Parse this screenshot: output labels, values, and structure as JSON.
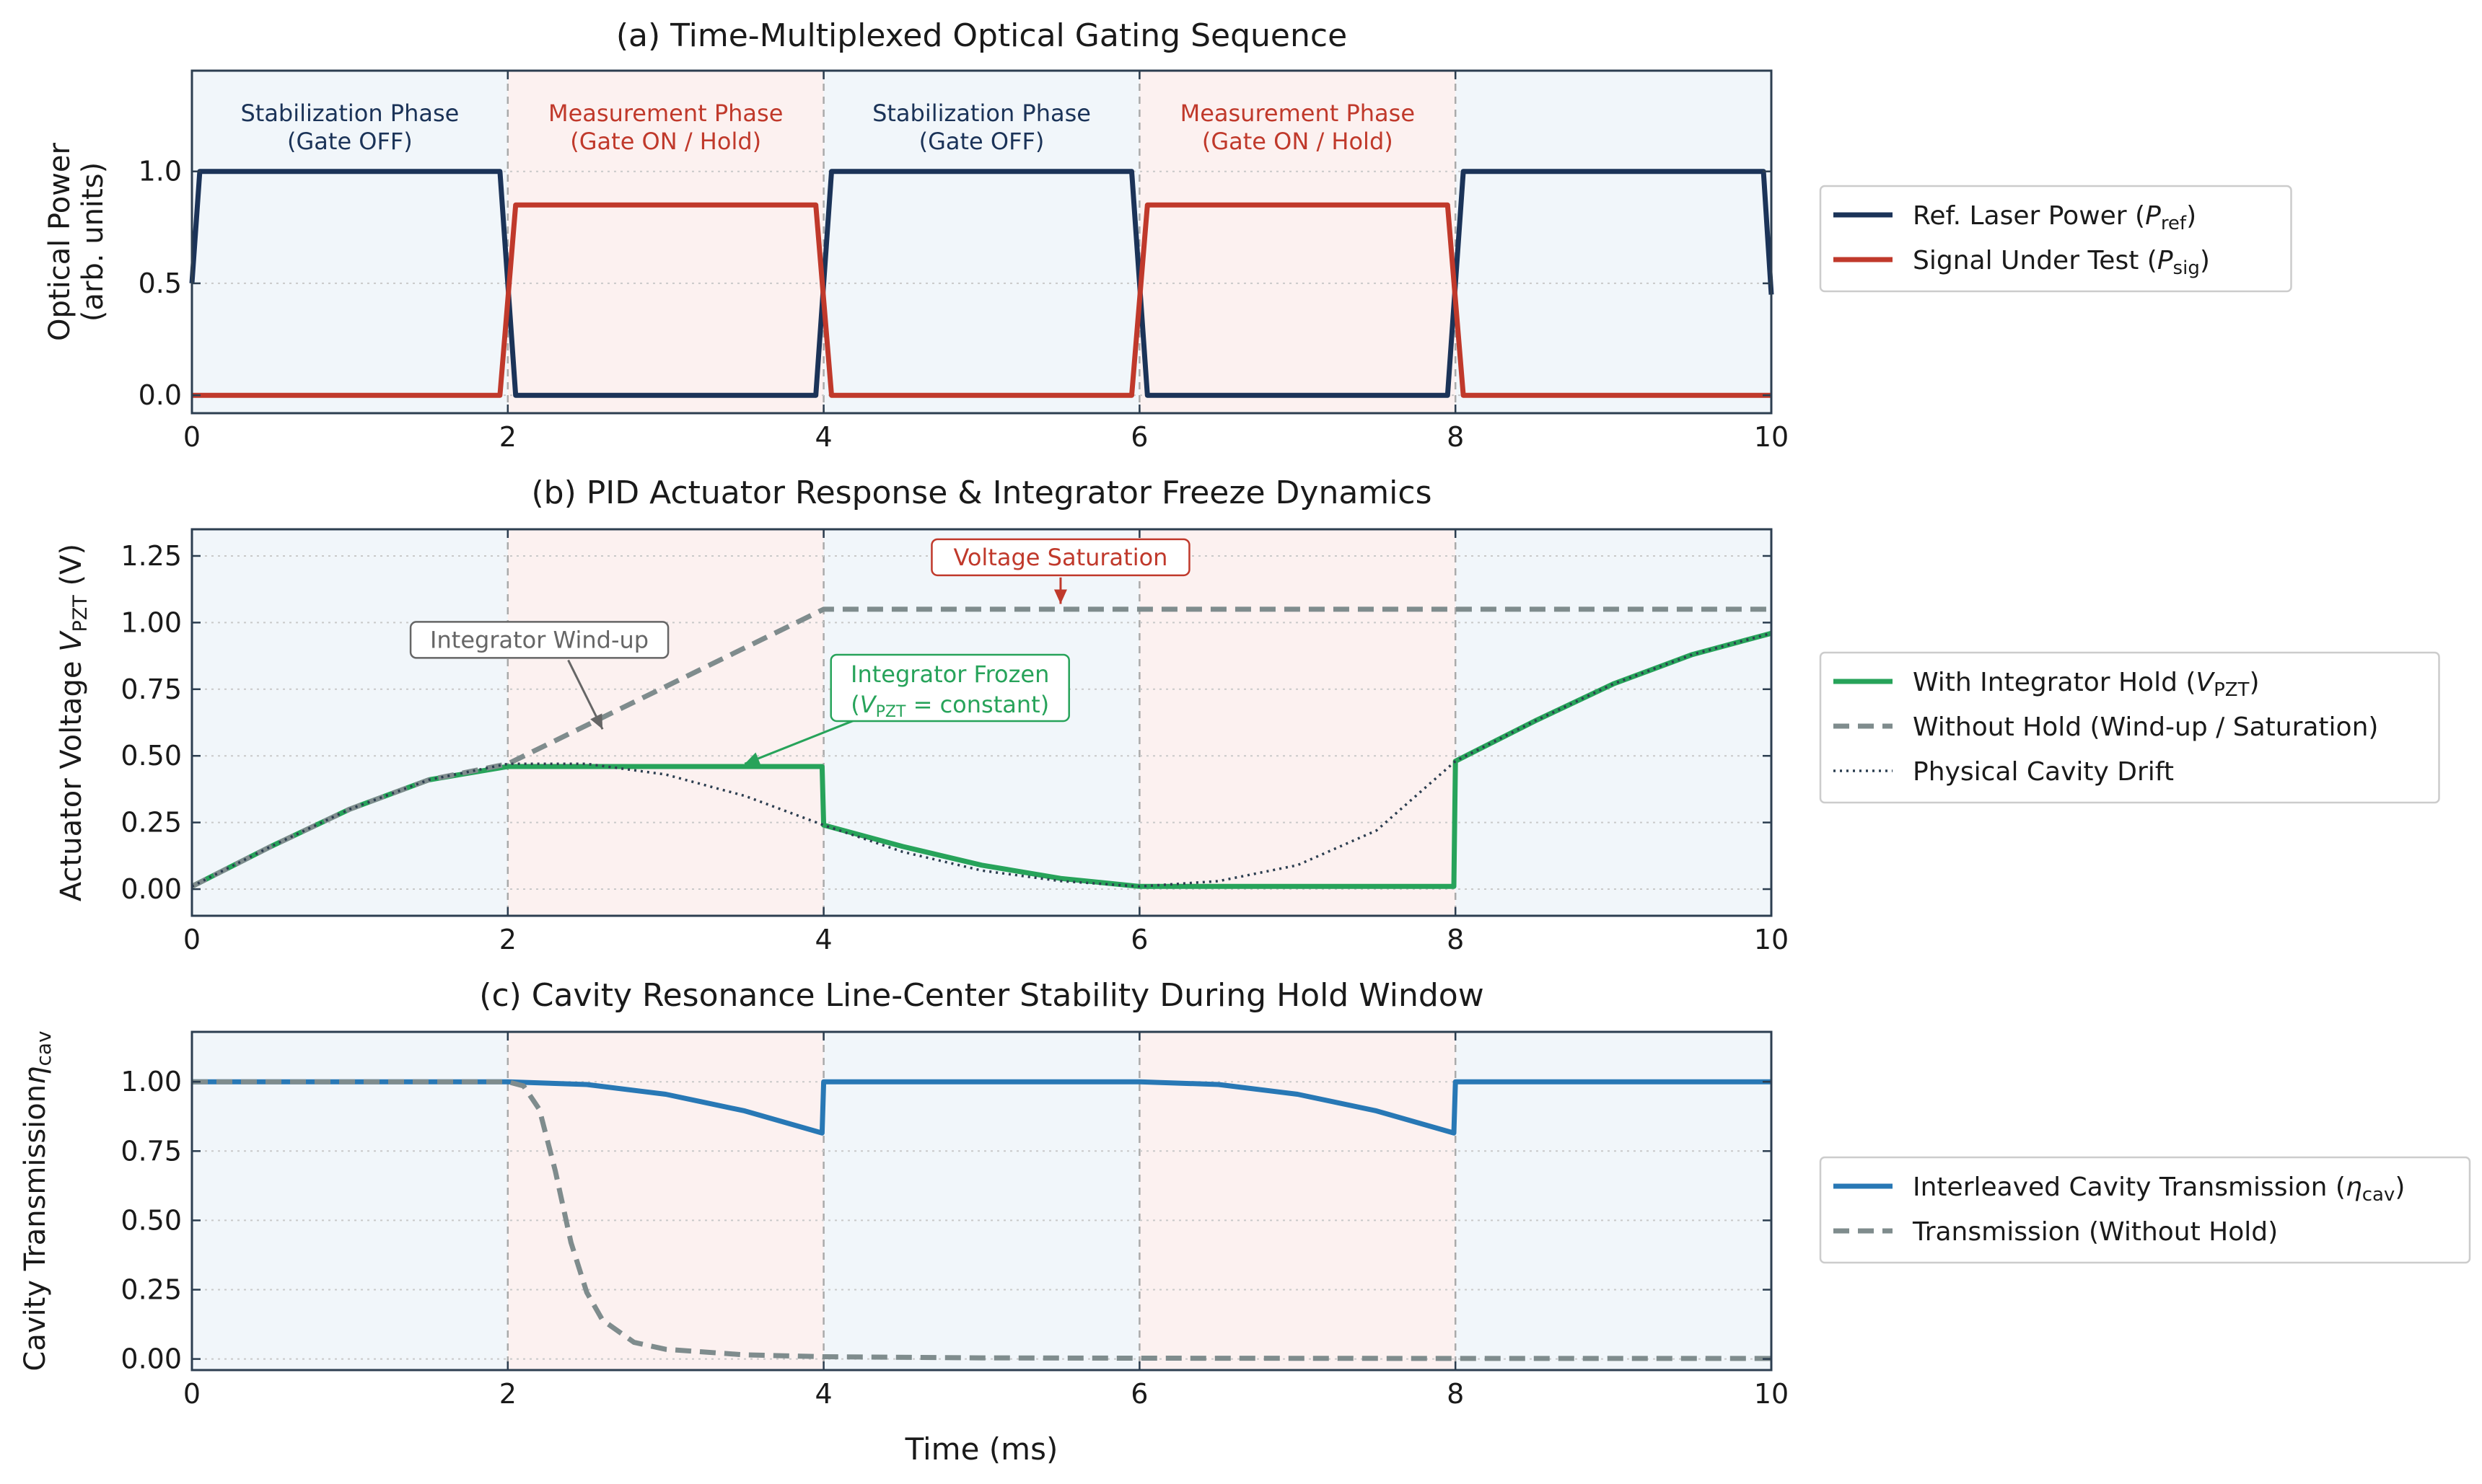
{
  "colors": {
    "stab_bg": "#f1f6fa",
    "meas_bg": "#fcf1f0",
    "ref": "#1b3358",
    "sig": "#c0392b",
    "hold": "#27a35a",
    "nohold": "#7f8c8d",
    "drift": "#2c3e50",
    "cavity": "#2878b5",
    "frame": "#2c3e50",
    "annot_gray": "#666666",
    "annot_red": "#c0392b",
    "annot_green": "#27a35a"
  },
  "x_axis": {
    "label": "Time (ms)",
    "ticks": [
      "0",
      "2",
      "4",
      "6",
      "8",
      "10"
    ],
    "range": [
      0,
      10
    ]
  },
  "chart_data": [
    {
      "type": "line",
      "title": "(a) Time-Multiplexed Optical Gating Sequence",
      "ylabel_lines": [
        "Optical Power",
        "(arb. units)"
      ],
      "ylim": [
        -0.08,
        1.45
      ],
      "yticks": [
        "0.0",
        "0.5",
        "1.0"
      ],
      "ytick_values": [
        0.0,
        0.5,
        1.0
      ],
      "grid": "horizontal dotted",
      "legend_position": "right",
      "phases": [
        {
          "start": 0,
          "end": 2,
          "kind": "stabilization",
          "label1": "Stabilization Phase",
          "label2": "(Gate OFF)"
        },
        {
          "start": 2,
          "end": 4,
          "kind": "measurement",
          "label1": "Measurement Phase",
          "label2": "(Gate ON / Hold)"
        },
        {
          "start": 4,
          "end": 6,
          "kind": "stabilization",
          "label1": "Stabilization Phase",
          "label2": "(Gate OFF)"
        },
        {
          "start": 6,
          "end": 8,
          "kind": "measurement",
          "label1": "Measurement Phase",
          "label2": "(Gate ON / Hold)"
        },
        {
          "start": 8,
          "end": 10,
          "kind": "stabilization",
          "label1": "",
          "label2": ""
        }
      ],
      "series": [
        {
          "name": "Ref. Laser Power (P_ref)",
          "legend_main": "Ref. Laser Power (",
          "legend_var": "P",
          "legend_sub": "ref",
          "legend_tail": ")",
          "color_key": "ref",
          "style": "solid",
          "x": [
            0,
            0.05,
            1.95,
            2.05,
            3.95,
            4.05,
            5.95,
            6.05,
            7.95,
            8.05,
            9.95,
            10.0
          ],
          "y": [
            0.5,
            1.0,
            1.0,
            0.0,
            0.0,
            1.0,
            1.0,
            0.0,
            0.0,
            1.0,
            1.0,
            0.45
          ]
        },
        {
          "name": "Signal Under Test (P_sig)",
          "legend_main": "Signal Under Test (",
          "legend_var": "P",
          "legend_sub": "sig",
          "legend_tail": ")",
          "color_key": "sig",
          "style": "solid",
          "x": [
            0,
            1.95,
            2.05,
            3.95,
            4.05,
            5.95,
            6.05,
            7.95,
            8.05,
            10.0
          ],
          "y": [
            0.0,
            0.0,
            0.85,
            0.85,
            0.0,
            0.0,
            0.85,
            0.85,
            0.0,
            0.0
          ]
        }
      ]
    },
    {
      "type": "line",
      "title": "(b) PID Actuator Response & Integrator Freeze Dynamics",
      "ylabel_main": "Actuator Voltage ",
      "ylabel_var": "V",
      "ylabel_sub": "PZT",
      "ylabel_tail": " (V)",
      "ylim": [
        -0.1,
        1.35
      ],
      "yticks": [
        "0.00",
        "0.25",
        "0.50",
        "0.75",
        "1.00",
        "1.25"
      ],
      "ytick_values": [
        0.0,
        0.25,
        0.5,
        0.75,
        1.0,
        1.25
      ],
      "grid": "horizontal dotted",
      "legend_position": "right",
      "phases": [
        {
          "start": 0,
          "end": 2,
          "kind": "stabilization"
        },
        {
          "start": 2,
          "end": 4,
          "kind": "measurement"
        },
        {
          "start": 4,
          "end": 6,
          "kind": "stabilization"
        },
        {
          "start": 6,
          "end": 8,
          "kind": "measurement"
        },
        {
          "start": 8,
          "end": 10,
          "kind": "stabilization"
        }
      ],
      "series": [
        {
          "name": "With Integrator Hold (V_PZT)",
          "legend_main": "With Integrator Hold (",
          "legend_var": "V",
          "legend_sub": "PZT",
          "legend_tail": ")",
          "color_key": "hold",
          "style": "solid",
          "x": [
            0,
            0.5,
            1.0,
            1.5,
            2.0,
            2.0,
            3.99,
            4.0,
            4.5,
            5.0,
            5.5,
            6.0,
            6.0,
            7.99,
            8.0,
            8.5,
            9.0,
            9.5,
            10.0
          ],
          "y": [
            0.01,
            0.16,
            0.3,
            0.41,
            0.46,
            0.46,
            0.46,
            0.24,
            0.16,
            0.09,
            0.04,
            0.01,
            0.01,
            0.01,
            0.48,
            0.63,
            0.77,
            0.88,
            0.96
          ]
        },
        {
          "name": "Without Hold (Wind-up / Saturation)",
          "legend_main": "Without Hold (Wind-up / Saturation)",
          "color_key": "nohold",
          "style": "dashed",
          "x": [
            0,
            0.5,
            1.0,
            1.5,
            2.0,
            4.0,
            10.0
          ],
          "y": [
            0.01,
            0.16,
            0.3,
            0.41,
            0.47,
            1.05,
            1.05
          ]
        },
        {
          "name": "Physical Cavity Drift",
          "legend_main": "Physical Cavity Drift",
          "color_key": "drift",
          "style": "dotted",
          "x": [
            0,
            0.5,
            1.0,
            1.5,
            2.0,
            2.5,
            3.0,
            3.5,
            4.0,
            4.5,
            5.0,
            5.5,
            6.0,
            6.5,
            7.0,
            7.5,
            8.0,
            8.5,
            9.0,
            9.5,
            10.0
          ],
          "y": [
            0.01,
            0.16,
            0.3,
            0.41,
            0.47,
            0.47,
            0.43,
            0.35,
            0.24,
            0.14,
            0.07,
            0.03,
            0.01,
            0.03,
            0.09,
            0.22,
            0.48,
            0.63,
            0.77,
            0.88,
            0.96
          ]
        }
      ],
      "annotations": [
        {
          "text": "Integrator Wind-up",
          "color_key": "annot_gray",
          "box_x": 2.2,
          "box_y": 0.935,
          "arrow_to": [
            2.6,
            0.6
          ]
        },
        {
          "text": "Voltage Saturation",
          "color_key": "annot_red",
          "box_x": 5.5,
          "box_y": 1.245,
          "arrow_to": [
            5.5,
            1.07
          ]
        },
        {
          "text_line1": "Integrator Frozen",
          "text_line2_main": "(",
          "text_line2_var": "V",
          "text_line2_sub": "PZT",
          "text_line2_tail": " = constant)",
          "color_key": "annot_green",
          "box_x": 4.8,
          "box_y": 0.755,
          "arrow_to": [
            3.5,
            0.47
          ]
        }
      ]
    },
    {
      "type": "line",
      "title": "(c) Cavity Resonance Line-Center Stability During Hold Window",
      "ylabel_line1": "Cavity Transmission",
      "ylabel_var": "η",
      "ylabel_sub": "cav",
      "ylim": [
        -0.04,
        1.18
      ],
      "yticks": [
        "0.00",
        "0.25",
        "0.50",
        "0.75",
        "1.00"
      ],
      "ytick_values": [
        0.0,
        0.25,
        0.5,
        0.75,
        1.0
      ],
      "grid": "horizontal dotted",
      "legend_position": "right",
      "phases": [
        {
          "start": 0,
          "end": 2,
          "kind": "stabilization"
        },
        {
          "start": 2,
          "end": 4,
          "kind": "measurement"
        },
        {
          "start": 4,
          "end": 6,
          "kind": "stabilization"
        },
        {
          "start": 6,
          "end": 8,
          "kind": "measurement"
        },
        {
          "start": 8,
          "end": 10,
          "kind": "stabilization"
        }
      ],
      "series": [
        {
          "name": "Interleaved Cavity Transmission (η_cav)",
          "legend_main": "Interleaved Cavity Transmission (",
          "legend_var": "η",
          "legend_sub": "cav",
          "legend_tail": ")",
          "color_key": "cavity",
          "style": "solid",
          "x": [
            0,
            2.0,
            2.5,
            3.0,
            3.5,
            3.99,
            4.0,
            6.0,
            6.5,
            7.0,
            7.5,
            7.99,
            8.0,
            10.0
          ],
          "y": [
            1.0,
            1.0,
            0.99,
            0.955,
            0.895,
            0.815,
            1.0,
            1.0,
            0.99,
            0.955,
            0.895,
            0.815,
            1.0,
            1.0
          ]
        },
        {
          "name": "Transmission (Without Hold)",
          "legend_main": "Transmission (Without Hold)",
          "color_key": "nohold",
          "style": "dashed",
          "x": [
            0,
            2.0,
            2.1,
            2.2,
            2.3,
            2.4,
            2.5,
            2.6,
            2.8,
            3.0,
            3.5,
            4.0,
            5.0,
            6.0,
            8.0,
            10.0
          ],
          "y": [
            1.0,
            1.0,
            0.985,
            0.9,
            0.68,
            0.42,
            0.24,
            0.14,
            0.06,
            0.035,
            0.015,
            0.008,
            0.004,
            0.003,
            0.002,
            0.002
          ]
        }
      ]
    }
  ]
}
